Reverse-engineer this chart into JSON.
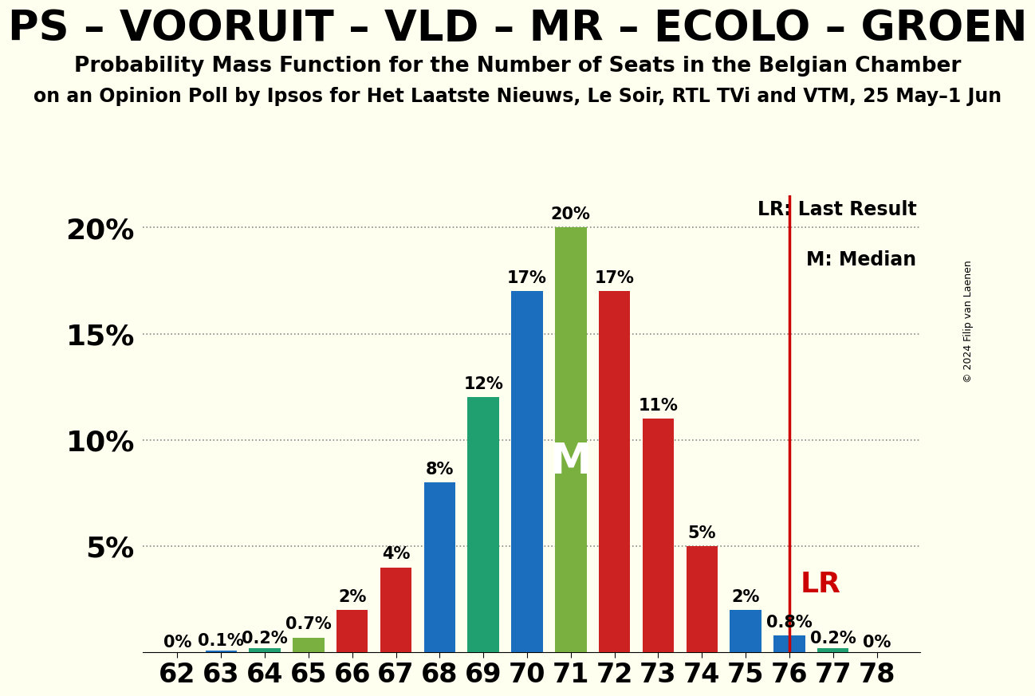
{
  "title": "PS – VOORUIT – VLD – MR – ECOLO – GROEN",
  "subtitle": "Probability Mass Function for the Number of Seats in the Belgian Chamber",
  "subtitle2": "on an Opinion Poll by Ipsos for Het Laatste Nieuws, Le Soir, RTL TVi and VTM, 25 May–1 Jun",
  "copyright": "© 2024 Filip van Laenen",
  "seats": [
    62,
    63,
    64,
    65,
    66,
    67,
    68,
    69,
    70,
    71,
    72,
    73,
    74,
    75,
    76,
    77,
    78
  ],
  "probs": [
    0.0,
    0.1,
    0.2,
    0.7,
    2.0,
    4.0,
    8.0,
    12.0,
    17.0,
    20.0,
    17.0,
    11.0,
    5.0,
    2.0,
    0.8,
    0.2,
    0.0
  ],
  "bar_colors": [
    "#2e8b3a",
    "#1a6ebd",
    "#20a070",
    "#7ab040",
    "#cc2222",
    "#cc2222",
    "#1a6ebd",
    "#20a070",
    "#1a6ebd",
    "#7ab040",
    "#cc2222",
    "#cc2222",
    "#cc2222",
    "#1a6ebd",
    "#1a6ebd",
    "#20a070",
    "#7ab040"
  ],
  "labels": [
    "0%",
    "0.1%",
    "0.2%",
    "0.7%",
    "2%",
    "4%",
    "8%",
    "12%",
    "17%",
    "20%",
    "17%",
    "11%",
    "5%",
    "2%",
    "0.8%",
    "0.2%",
    "0%"
  ],
  "median_seat": 71,
  "lr_seat": 76,
  "lr_color": "#cc0000",
  "lr_label_color": "#cc0000",
  "background_color": "#fffff0",
  "ylim": [
    0,
    21.5
  ],
  "yticks": [
    5,
    10,
    15,
    20
  ],
  "ytick_labels": [
    "5%",
    "10%",
    "15%",
    "20%"
  ],
  "annotation_M_color": "#ffffff",
  "grid_color": "#888888",
  "title_fontsize": 38,
  "subtitle_fontsize": 19,
  "subtitle2_fontsize": 17,
  "bar_label_fontsize": 15,
  "axis_tick_fontsize": 24,
  "ytick_fontsize": 26,
  "copyright_fontsize": 9,
  "M_fontsize": 38,
  "lr_fontsize": 26
}
